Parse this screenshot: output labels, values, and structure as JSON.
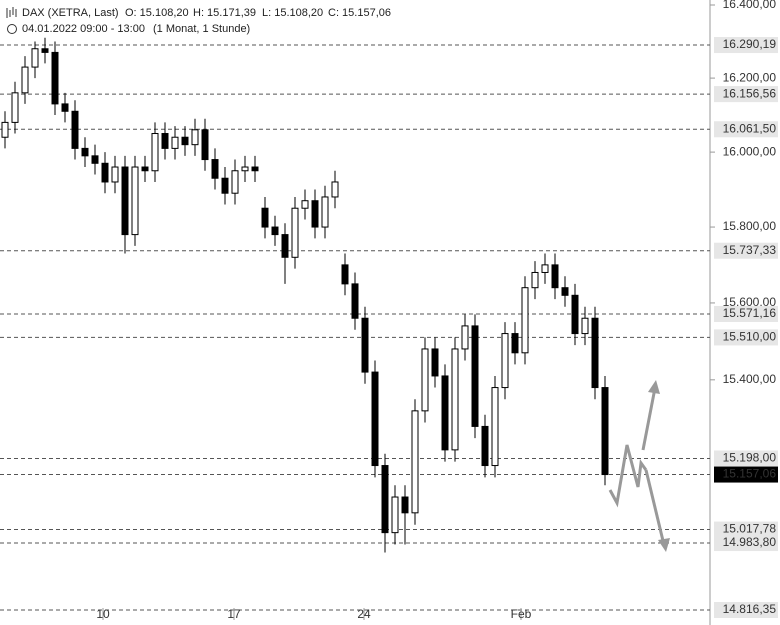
{
  "chart_data": {
    "type": "candlestick",
    "header": {
      "title": "DAX (XETRA, Last)",
      "ohlc": [
        "O: 15.108,20",
        "H: 15.171,39",
        "L: 15.108,20",
        "C: 15.157,06"
      ],
      "period": "04.01.2022 09:00 - 13:00",
      "interval": "(1 Monat, 1 Stunde)"
    },
    "log_scale": true,
    "xlim": [
      -0.5,
      70.5
    ],
    "xticks": [
      {
        "value": 9.8,
        "label": "10"
      },
      {
        "value": 22.9,
        "label": "17"
      },
      {
        "value": 35.9,
        "label": "24"
      },
      {
        "value": 51.6,
        "label": "Feb"
      }
    ],
    "ylim": [
      14816.35,
      16400
    ],
    "yticks": [
      {
        "value": 16400,
        "label": "16.400,00"
      },
      {
        "value": 16200,
        "label": "16.200,00"
      },
      {
        "value": 16000,
        "label": "16.000,00"
      },
      {
        "value": 15800,
        "label": "15.800,00"
      },
      {
        "value": 15600,
        "label": "15.600,00"
      },
      {
        "value": 15400,
        "label": "15.400,00"
      }
    ],
    "levels": [
      {
        "value": 16290.19,
        "label": "16.290,19"
      },
      {
        "value": 16156.56,
        "label": "16.156,56"
      },
      {
        "value": 16061.5,
        "label": "16.061,50"
      },
      {
        "value": 15737.33,
        "label": "15.737,33"
      },
      {
        "value": 15571.16,
        "label": "15.571,16"
      },
      {
        "value": 15510,
        "label": "15.510,00"
      },
      {
        "value": 15198,
        "label": "15.198,00"
      },
      {
        "value": 15017.78,
        "label": "15.017,78"
      },
      {
        "value": 14983.8,
        "label": "14.983,80"
      },
      {
        "value": 14816.35,
        "label": "14.816,35"
      }
    ],
    "last_price": {
      "value": 15157.06,
      "label": "15.157,06"
    },
    "up_color": "#ffffff",
    "down_color": "#000000",
    "open": [
      16040,
      16080,
      16160,
      16230,
      16280,
      16270,
      16130,
      16110,
      16010,
      15990,
      15970,
      15920,
      15960,
      15780,
      15960,
      15950,
      16050,
      16010,
      16040,
      16020,
      16060,
      15980,
      15930,
      15890,
      15950,
      15960,
      15850,
      15800,
      15780,
      15720,
      15850,
      15870,
      15800,
      15880,
      15700,
      15650,
      15560,
      15420,
      15180,
      15010,
      15100,
      15060,
      15320,
      15480,
      15410,
      15220,
      15480,
      15540,
      15280,
      15180,
      15380,
      15520,
      15470,
      15640,
      15680,
      15700,
      15640,
      15620,
      15520,
      15560,
      15380
    ],
    "high": [
      16110,
      16190,
      16260,
      16300,
      16310,
      16300,
      16160,
      16140,
      16040,
      16020,
      16000,
      15990,
      15990,
      15990,
      15990,
      16080,
      16080,
      16070,
      16070,
      16090,
      16090,
      16010,
      15960,
      15980,
      15990,
      15990,
      15880,
      15830,
      15810,
      15880,
      15900,
      15900,
      15910,
      15950,
      15730,
      15680,
      15590,
      15450,
      15210,
      15130,
      15130,
      15350,
      15510,
      15510,
      15440,
      15510,
      15570,
      15570,
      15310,
      15410,
      15550,
      15550,
      15670,
      15710,
      15730,
      15730,
      15670,
      15650,
      15590,
      15590,
      15410
    ],
    "low": [
      16010,
      16050,
      16130,
      16200,
      16240,
      16100,
      16080,
      15980,
      15960,
      15940,
      15890,
      15890,
      15730,
      15750,
      15920,
      15920,
      15980,
      15980,
      15990,
      15990,
      15950,
      15900,
      15860,
      15860,
      15920,
      15920,
      15770,
      15750,
      15650,
      15690,
      15820,
      15770,
      15770,
      15850,
      15620,
      15530,
      15390,
      15150,
      14960,
      14980,
      14980,
      15030,
      15290,
      15380,
      15190,
      15190,
      15450,
      15250,
      15150,
      15150,
      15350,
      15440,
      15440,
      15610,
      15650,
      15610,
      15590,
      15490,
      15490,
      15350,
      15130
    ],
    "close": [
      16080,
      16160,
      16230,
      16280,
      16270,
      16130,
      16110,
      16010,
      15990,
      15970,
      15920,
      15960,
      15780,
      15960,
      15950,
      16050,
      16010,
      16040,
      16020,
      16060,
      15980,
      15930,
      15890,
      15950,
      15960,
      15950,
      15800,
      15780,
      15720,
      15850,
      15870,
      15800,
      15880,
      15920,
      15650,
      15560,
      15420,
      15180,
      15010,
      15100,
      15060,
      15320,
      15480,
      15410,
      15220,
      15480,
      15540,
      15280,
      15180,
      15380,
      15520,
      15470,
      15640,
      15680,
      15700,
      15640,
      15620,
      15520,
      15560,
      15380,
      15157.06
    ]
  }
}
